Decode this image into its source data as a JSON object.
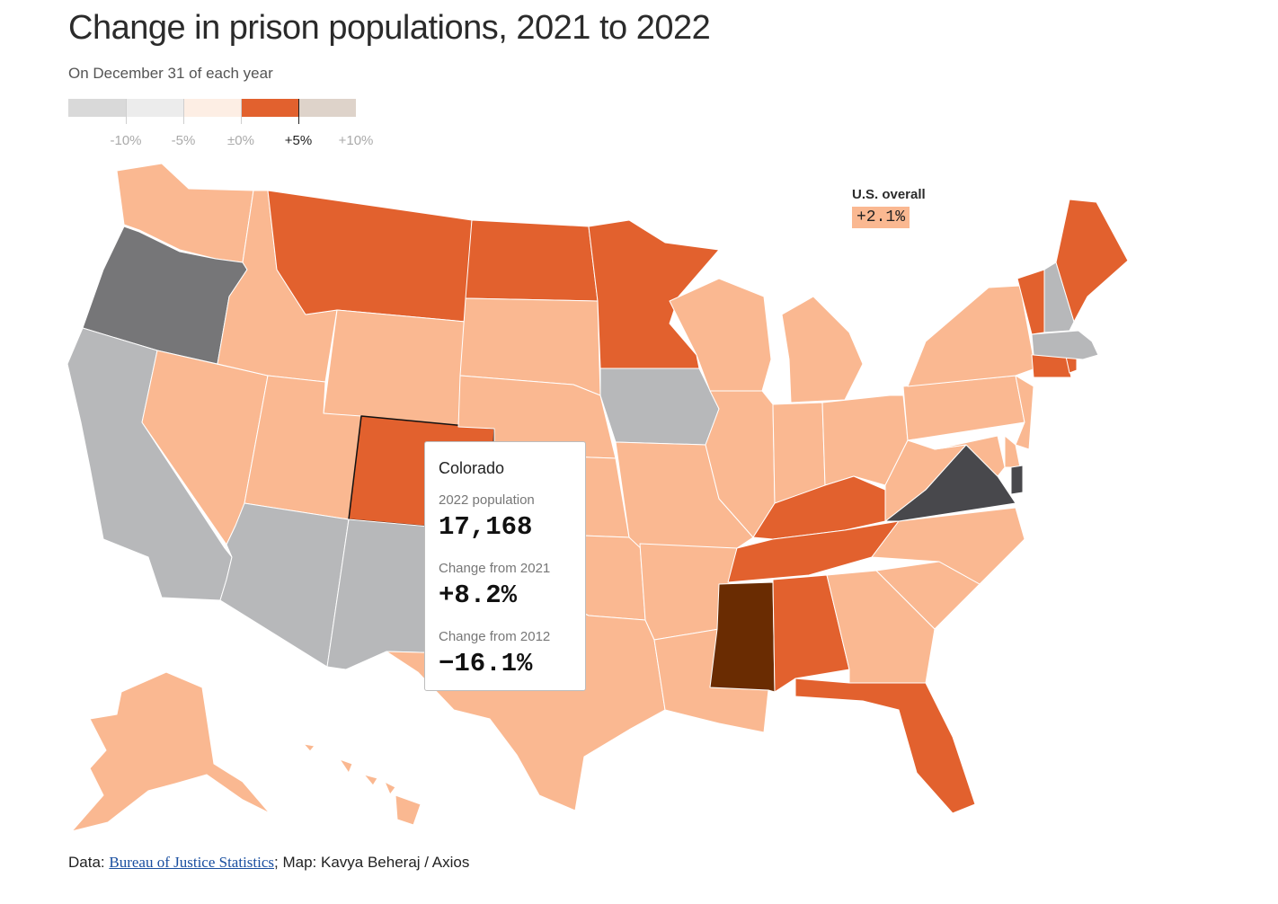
{
  "title": "Change in prison populations, 2021 to 2022",
  "subtitle": "On December 31 of each year",
  "legend": {
    "colors": [
      "#d9d9d9",
      "#ececec",
      "#fdeee4",
      "#e2612e",
      "#ded3ca"
    ],
    "ticks": [
      {
        "label": "-10%",
        "active": false
      },
      {
        "label": "-5%",
        "active": false
      },
      {
        "label": "±0%",
        "active": false
      },
      {
        "label": "+5%",
        "active": true
      },
      {
        "label": "+10%",
        "active": false
      }
    ]
  },
  "colors": {
    "light": "#fab891",
    "orange": "#e2612e",
    "gray": "#b7b8ba",
    "darkgray": "#767678",
    "charcoal": "#48484c",
    "brown": "#6a2c02"
  },
  "us_overall": {
    "label": "U.S. overall",
    "value": "+2.1%"
  },
  "tooltip": {
    "state": "Colorado",
    "population_label": "2022 population",
    "population": "17,168",
    "change_2021_label": "Change from 2021",
    "change_2021": "+8.2%",
    "change_2012_label": "Change from 2012",
    "change_2012": "−16.1%"
  },
  "footer": {
    "data_prefix": "Data: ",
    "source": "Bureau of Justice Statistics",
    "suffix": "; Map: Kavya Beheraj / Axios"
  }
}
